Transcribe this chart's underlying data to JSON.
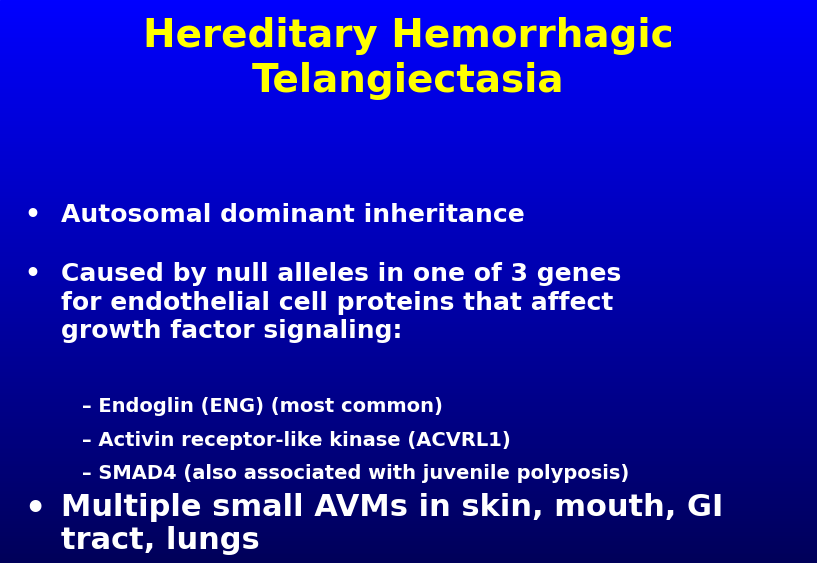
{
  "title_line1": "Hereditary Hemorrhagic",
  "title_line2": "Telangiectasia",
  "title_color": "#FFFF00",
  "title_fontsize": 28,
  "background_color": "#0033FF",
  "bullet_color": "#FFFFFF",
  "bullet_fontsize": 18,
  "sub_bullet_fontsize": 14,
  "last_bullet_fontsize": 22,
  "bullet1": "Autosomal dominant inheritance",
  "bullet2_line1": "Caused by null alleles in one of 3 genes",
  "bullet2_line2": "for endothelial cell proteins that affect",
  "bullet2_line3": "growth factor signaling:",
  "sub1": "– Endoglin (ENG) (most common)",
  "sub2": "– Activin receptor-like kinase (ACVRL1)",
  "sub3": "– SMAD4 (also associated with juvenile polyposis)",
  "last_line1": "Multiple small AVMs in skin, mouth, GI",
  "last_line2": "tract, lungs"
}
